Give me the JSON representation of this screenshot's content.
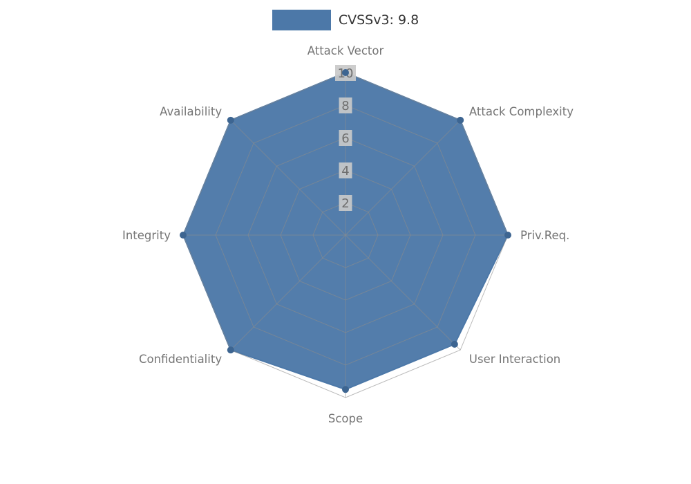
{
  "chart_data": {
    "type": "radar",
    "legend": "CVSSv3: 9.8",
    "legend_position": "top",
    "categories": [
      "Attack Vector",
      "Attack Complexity",
      "Priv.Req.",
      "User Interaction",
      "Scope",
      "Confidentiality",
      "Integrity",
      "Availability"
    ],
    "series": [
      {
        "name": "CVSSv3: 9.8",
        "values": [
          10,
          10,
          10,
          9.5,
          9.5,
          10,
          10,
          10
        ]
      }
    ],
    "ticks": [
      2,
      4,
      6,
      8,
      10
    ],
    "rlim": [
      0,
      10
    ],
    "grid": true,
    "colors": {
      "fill": "#4c78a8",
      "marker": "#3d6591",
      "grid": "#8c8c8c",
      "tick_label_bg": "#c9c9c9",
      "tick_label_text": "#6e6e6e",
      "axis_label_text": "#757575",
      "legend_text": "#333333",
      "background": "#ffffff"
    }
  }
}
